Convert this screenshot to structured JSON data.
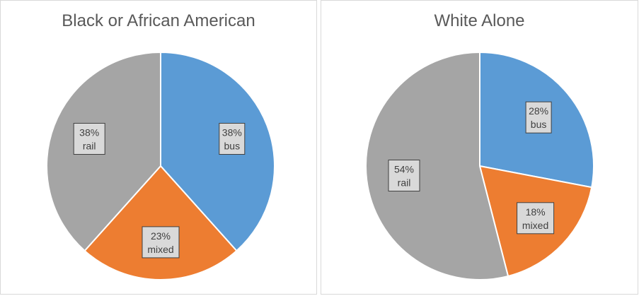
{
  "chart_data": [
    {
      "type": "pie",
      "title": "Black or African American",
      "categories": [
        "bus",
        "mixed",
        "rail"
      ],
      "values": [
        38,
        23,
        38
      ],
      "data_labels": [
        "38%",
        "23%",
        "38%"
      ],
      "colors": [
        "#5b9bd5",
        "#ed7d31",
        "#a5a5a5"
      ]
    },
    {
      "type": "pie",
      "title": "White Alone",
      "categories": [
        "bus",
        "mixed",
        "rail"
      ],
      "values": [
        28,
        18,
        54
      ],
      "data_labels": [
        "28%",
        "18%",
        "54%"
      ],
      "colors": [
        "#5b9bd5",
        "#ed7d31",
        "#a5a5a5"
      ]
    }
  ]
}
